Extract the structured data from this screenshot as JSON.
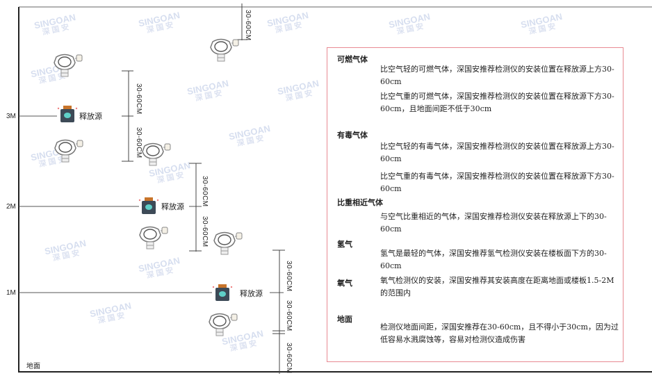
{
  "watermark": {
    "brand": "SINGOAN",
    "cn": "深国安"
  },
  "levels": [
    "3M",
    "2M",
    "1M"
  ],
  "ground_label": "地面",
  "source_label": "释放源",
  "dimension_label": "30-60CM",
  "panel": {
    "sections": [
      {
        "title": "可燃气体",
        "paragraphs": [
          "比空气轻的可燃气体，深国安推荐检测仪的安装位置在释放源上方30-60cm",
          "比空气重的可燃气体，深国安推荐检测仪的安装位置在释放源下方30-60cm，且地面间距不低于30cm"
        ]
      },
      {
        "title": "有毒气体",
        "paragraphs": [
          "比空气轻的有毒气体，深国安推荐检测仪的安装位置在释放源上方30-60cm",
          "比空气重的有毒气体，深国安推荐检测仪的安装位置在释放源下方30-60cm"
        ]
      },
      {
        "title": "比重相近气体",
        "paragraphs": [
          "与空气比重相近的气体，深国安推荐检测仪安装在释放源上下的30-60cm"
        ]
      },
      {
        "title": "氢气",
        "paragraphs": [
          "氢气是最轻的气体，深国安推荐氢气检测仪安装在楼板面下方的30-60cm"
        ]
      },
      {
        "title": "氧气",
        "paragraphs": [
          "氧气检测仪的安装，深国安推荐其安装高度在距离地面或楼板1.5-2M的范围内"
        ]
      },
      {
        "title": "地面",
        "paragraphs": [
          "检测仪地面间距，深国安推荐在30-60cm，且不得小于30cm，因为过低容易水溅腐蚀等，容易对检测仪造成伤害"
        ]
      }
    ]
  },
  "colors": {
    "panel_border": "#e88a92",
    "source_body": "#3d4a57",
    "source_cap": "#c8742a",
    "source_face": "#5fd0c8"
  }
}
